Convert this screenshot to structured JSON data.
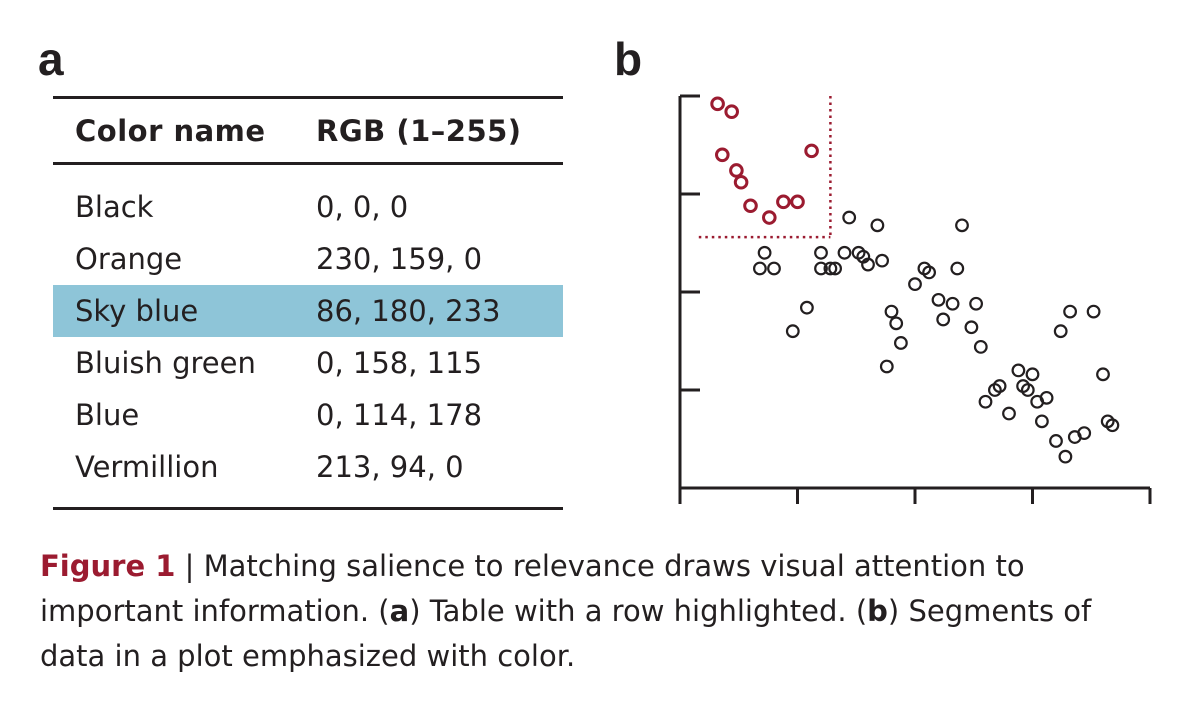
{
  "panels": {
    "a": "a",
    "b": "b"
  },
  "table": {
    "headers": [
      "Color name",
      "RGB (1–255)"
    ],
    "rows": [
      {
        "name": "Black",
        "rgb": "0, 0, 0"
      },
      {
        "name": "Orange",
        "rgb": "230, 159, 0"
      },
      {
        "name": "Sky blue",
        "rgb": "86, 180, 233"
      },
      {
        "name": "Bluish green",
        "rgb": "0, 158, 115"
      },
      {
        "name": "Blue",
        "rgb": "0, 114, 178"
      },
      {
        "name": "Vermillion",
        "rgb": "213, 94, 0"
      }
    ],
    "highlight_row": 2,
    "highlight_color": "#8ec5d8"
  },
  "chart_data": {
    "type": "scatter",
    "xlim": [
      0,
      100
    ],
    "ylim": [
      0,
      100
    ],
    "x_ticks": [
      0,
      25,
      50,
      75,
      100
    ],
    "y_ticks": [
      0,
      25,
      50,
      75,
      100
    ],
    "tick_labels": "none",
    "grid": false,
    "highlight_threshold": {
      "x": 32,
      "y": 64
    },
    "series": [
      {
        "color": "#9b1b30",
        "points": [
          [
            8,
            98
          ],
          [
            11,
            96
          ],
          [
            9,
            85
          ],
          [
            12,
            81
          ],
          [
            13,
            78
          ],
          [
            15,
            72
          ],
          [
            19,
            69
          ],
          [
            22,
            73
          ],
          [
            25,
            73
          ],
          [
            28,
            86
          ]
        ]
      },
      {
        "color": "#231f20",
        "points": [
          [
            17,
            56
          ],
          [
            18,
            60
          ],
          [
            20,
            56
          ],
          [
            24,
            40
          ],
          [
            27,
            46
          ],
          [
            30,
            56
          ],
          [
            30,
            60
          ],
          [
            32,
            56
          ],
          [
            33,
            56
          ],
          [
            35,
            60
          ],
          [
            36,
            69
          ],
          [
            38,
            60
          ],
          [
            39,
            59
          ],
          [
            40,
            57
          ],
          [
            42,
            67
          ],
          [
            43,
            58
          ],
          [
            45,
            45
          ],
          [
            46,
            42
          ],
          [
            47,
            37
          ],
          [
            44,
            31
          ],
          [
            50,
            52
          ],
          [
            52,
            56
          ],
          [
            53,
            55
          ],
          [
            55,
            48
          ],
          [
            56,
            43
          ],
          [
            58,
            47
          ],
          [
            59,
            56
          ],
          [
            60,
            67
          ],
          [
            62,
            41
          ],
          [
            63,
            47
          ],
          [
            64,
            36
          ],
          [
            65,
            22
          ],
          [
            67,
            25
          ],
          [
            68,
            26
          ],
          [
            70,
            19
          ],
          [
            72,
            30
          ],
          [
            73,
            26
          ],
          [
            74,
            25
          ],
          [
            75,
            29
          ],
          [
            76,
            22
          ],
          [
            77,
            17
          ],
          [
            78,
            23
          ],
          [
            80,
            12
          ],
          [
            81,
            40
          ],
          [
            82,
            8
          ],
          [
            83,
            45
          ],
          [
            84,
            13
          ],
          [
            86,
            14
          ],
          [
            88,
            45
          ],
          [
            90,
            29
          ],
          [
            91,
            17
          ],
          [
            92,
            16
          ]
        ]
      }
    ]
  },
  "caption": {
    "figure_label": "Figure 1",
    "sep": " | ",
    "part1": "Matching salience to relevance draws visual attention to important information. (",
    "a": "a",
    "part2": ") Table with a row highlighted. (",
    "b": "b",
    "part3": ") Segments of data in a plot emphasized with color."
  }
}
